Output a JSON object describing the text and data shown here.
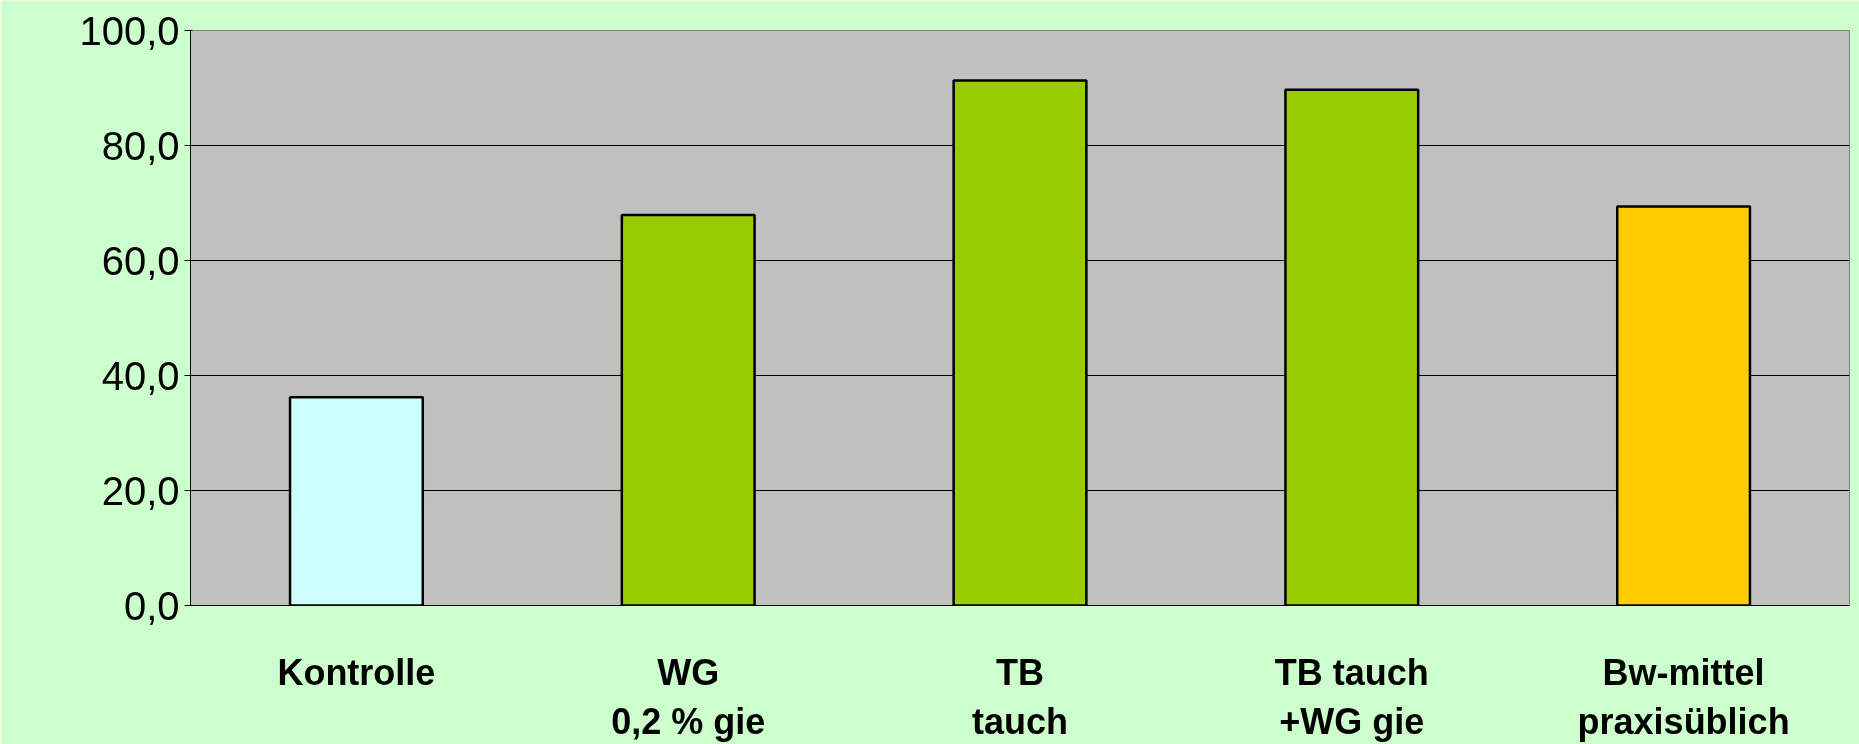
{
  "chart_data": {
    "type": "bar",
    "categories": [
      "Kontrolle",
      "WG\n0,2 % gie",
      "TB\ntauch",
      "TB tauch\n+WG gie",
      "Bw-mittel\npraxisüblich"
    ],
    "values": [
      36.2,
      67.9,
      91.3,
      89.7,
      69.4
    ],
    "colors": [
      "#ccffff",
      "#99cc00",
      "#99cc00",
      "#99cc00",
      "#ffcc00"
    ],
    "ylim": [
      0,
      100
    ],
    "yticks": [
      {
        "value": 0,
        "label": "0,0"
      },
      {
        "value": 20,
        "label": "20,0"
      },
      {
        "value": 40,
        "label": "40,0"
      },
      {
        "value": 60,
        "label": "60,0"
      },
      {
        "value": 80,
        "label": "80,0"
      },
      {
        "value": 100,
        "label": "100,0"
      }
    ],
    "grid": "y"
  }
}
